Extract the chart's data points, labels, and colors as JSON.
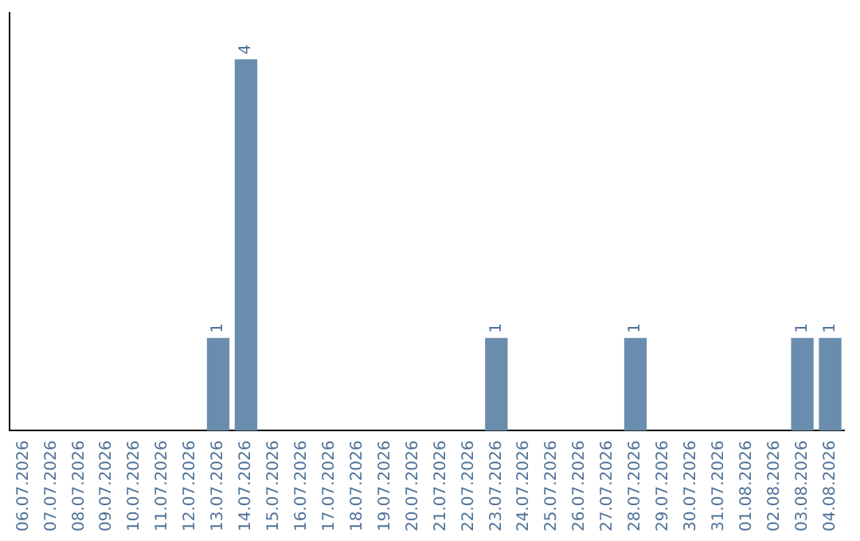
{
  "chart_data": {
    "type": "bar",
    "categories": [
      "06.07.2026",
      "07.07.2026",
      "08.07.2026",
      "09.07.2026",
      "10.07.2026",
      "11.07.2026",
      "12.07.2026",
      "13.07.2026",
      "14.07.2026",
      "15.07.2026",
      "16.07.2026",
      "17.07.2026",
      "18.07.2026",
      "19.07.2026",
      "20.07.2026",
      "21.07.2026",
      "22.07.2026",
      "23.07.2026",
      "24.07.2026",
      "25.07.2026",
      "26.07.2026",
      "27.07.2026",
      "28.07.2026",
      "29.07.2026",
      "30.07.2026",
      "31.07.2026",
      "01.08.2026",
      "02.08.2026",
      "03.08.2026",
      "04.08.2026"
    ],
    "values": [
      0,
      0,
      0,
      0,
      0,
      0,
      0,
      1,
      4,
      0,
      0,
      0,
      0,
      0,
      0,
      0,
      0,
      1,
      0,
      0,
      0,
      0,
      1,
      0,
      0,
      0,
      0,
      0,
      1,
      1
    ],
    "color": "#6a8dad",
    "value_labels": [
      null,
      null,
      null,
      null,
      null,
      null,
      null,
      "1",
      "4",
      null,
      null,
      null,
      null,
      null,
      null,
      null,
      null,
      "1",
      null,
      null,
      null,
      null,
      "1",
      null,
      null,
      null,
      null,
      null,
      "1",
      "1"
    ],
    "grid": false,
    "legend": false
  }
}
